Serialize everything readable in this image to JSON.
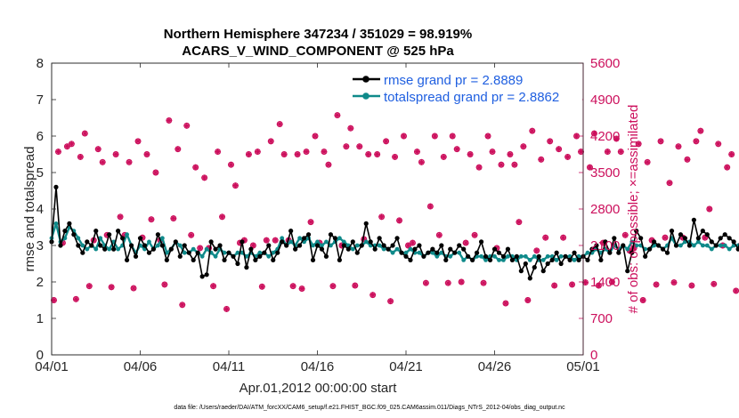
{
  "chart_data": {
    "type": "line",
    "title_line1": "Northern Hemisphere 347234 / 351029 = 98.919%",
    "title_line2": "ACARS_V_WIND_COMPONENT @ 525 hPa",
    "xlabel": "Apr.01,2012 00:00:00 start",
    "ylabel": "rmse and totalspread",
    "ylabel_right": "# of obs: o=possible; ×=assimilated",
    "footnote": "data file: /Users/raeder/DAI/ATM_forcXX/CAM6_setup/f.e21.FHIST_BGC.f09_025.CAM6assim.011/Diags_NTrS_2012-04/obs_diag_output.nc",
    "xlim": [
      0,
      30
    ],
    "ylim": [
      0,
      8
    ],
    "ylim_right": [
      0,
      5600
    ],
    "x_tick_values": [
      0,
      5,
      10,
      15,
      20,
      25,
      30
    ],
    "x_tick_labels": [
      "04/01",
      "04/06",
      "04/11",
      "04/16",
      "04/21",
      "04/26",
      "05/01"
    ],
    "y_ticks": [
      "0",
      "1",
      "2",
      "3",
      "4",
      "5",
      "6",
      "7",
      "8"
    ],
    "y_ticks_right": [
      "0",
      "700",
      "1400",
      "2100",
      "2800",
      "3500",
      "4200",
      "4900",
      "5600"
    ],
    "colors": {
      "rmse": "#000000",
      "spread": "#0f8a8a",
      "obs": "#cc0f5c",
      "legend_text": "#1f5fe0",
      "axis": "#262626"
    },
    "series": [
      {
        "name": "rmse grand pr = 2.8889",
        "marker": "dot",
        "x_step": 0.25,
        "values": [
          3.1,
          4.6,
          3.0,
          3.4,
          3.6,
          3.3,
          3.0,
          2.8,
          3.1,
          3.0,
          3.4,
          3.0,
          2.9,
          3.3,
          2.9,
          3.4,
          3.2,
          2.6,
          3.0,
          2.7,
          3.2,
          3.0,
          2.8,
          2.9,
          3.3,
          3.0,
          2.6,
          2.9,
          3.1,
          2.7,
          3.0,
          2.8,
          2.6,
          2.8,
          2.15,
          2.2,
          3.1,
          2.9,
          3.0,
          2.6,
          2.8,
          2.7,
          2.5,
          3.1,
          2.4,
          2.9,
          2.6,
          2.7,
          2.8,
          3.0,
          2.6,
          2.8,
          3.1,
          3.0,
          3.4,
          2.9,
          3.0,
          3.2,
          3.3,
          2.6,
          3.0,
          2.9,
          2.7,
          3.3,
          3.2,
          2.6,
          3.0,
          2.9,
          3.1,
          2.8,
          3.0,
          3.6,
          3.1,
          2.9,
          3.2,
          3.0,
          2.9,
          3.0,
          3.2,
          2.8,
          2.7,
          2.6,
          2.9,
          3.0,
          2.7,
          2.8,
          2.9,
          2.8,
          3.0,
          2.6,
          2.9,
          2.8,
          3.0,
          2.9,
          2.7,
          2.6,
          2.8,
          3.1,
          2.7,
          2.6,
          2.9,
          2.8,
          2.7,
          2.9,
          2.6,
          2.7,
          2.3,
          2.5,
          2.1,
          2.4,
          2.7,
          2.3,
          2.5,
          2.6,
          2.8,
          2.5,
          2.7,
          2.6,
          2.8,
          2.6,
          2.7,
          2.6,
          2.9,
          3.0,
          2.6,
          3.1,
          2.8,
          3.2,
          2.8,
          3.0,
          2.3,
          2.8,
          3.4,
          3.2,
          2.7,
          2.9,
          3.1,
          3.0,
          2.9,
          2.8,
          3.4,
          3.0,
          3.3,
          3.2,
          3.0,
          3.7,
          3.2,
          3.4,
          3.3,
          3.1,
          3.0,
          3.2,
          3.3,
          3.2,
          3.1,
          2.9,
          3.4,
          2.8,
          3.3,
          2.6,
          3.1,
          2.9,
          3.0,
          2.8,
          3.2,
          3.0,
          2.9,
          3.1,
          2.8,
          3.3,
          2.9,
          2.8,
          3.1,
          2.8,
          3.3,
          3.1,
          2.8
        ]
      },
      {
        "name": "totalspread grand pr = 2.8862",
        "marker": "dot",
        "x_step": 0.25,
        "values": [
          3.2,
          3.6,
          3.1,
          3.2,
          3.5,
          3.4,
          3.2,
          3.0,
          2.9,
          3.0,
          2.9,
          3.2,
          3.0,
          2.9,
          3.1,
          2.9,
          3.0,
          3.3,
          3.0,
          2.8,
          3.0,
          2.9,
          3.1,
          2.9,
          3.0,
          3.2,
          2.8,
          2.9,
          3.1,
          3.0,
          2.8,
          2.8,
          2.9,
          2.8,
          2.7,
          2.9,
          2.8,
          2.7,
          2.9,
          2.8,
          2.8,
          2.7,
          2.8,
          2.8,
          2.7,
          2.8,
          2.7,
          2.8,
          2.8,
          2.7,
          2.8,
          2.9,
          3.2,
          3.0,
          3.1,
          3.0,
          3.2,
          3.1,
          3.2,
          3.0,
          3.1,
          3.0,
          3.1,
          3.0,
          3.1,
          3.2,
          3.1,
          3.0,
          2.9,
          3.0,
          3.0,
          3.1,
          3.0,
          3.0,
          3.0,
          2.9,
          2.9,
          2.8,
          2.9,
          2.8,
          2.8,
          2.9,
          2.8,
          2.8,
          2.7,
          2.8,
          2.8,
          2.7,
          2.8,
          2.7,
          2.7,
          2.8,
          2.8,
          2.6,
          2.7,
          2.6,
          2.7,
          2.7,
          2.6,
          2.7,
          2.7,
          2.6,
          2.6,
          2.7,
          2.7,
          2.6,
          2.7,
          2.7,
          2.6,
          2.7,
          2.6,
          2.6,
          2.7,
          2.7,
          2.6,
          2.7,
          2.7,
          2.7,
          2.6,
          2.7,
          2.7,
          2.8,
          2.8,
          2.9,
          2.8,
          2.9,
          2.8,
          3.0,
          2.9,
          3.0,
          2.9,
          3.1,
          3.0,
          3.0,
          2.9,
          2.9,
          3.0,
          3.0,
          2.9,
          3.0,
          3.2,
          3.0,
          3.0,
          3.1,
          3.1,
          3.0,
          3.1,
          3.0,
          3.0,
          2.9,
          3.0,
          3.0,
          3.0,
          2.9,
          3.0,
          3.0,
          2.9,
          2.8,
          2.9,
          2.8,
          2.8,
          2.9,
          3.0,
          2.9,
          2.8,
          3.5,
          3.0,
          2.9,
          2.8,
          3.0,
          2.9,
          3.0,
          2.8,
          3.0,
          2.8
        ]
      }
    ],
    "obs_series": {
      "name": "# of obs",
      "x_step": 0.25,
      "x_start": 0.125,
      "assimilated": [
        1050,
        3900,
        2150,
        4000,
        4050,
        1070,
        3800,
        4250,
        1320,
        2200,
        3950,
        3700,
        2300,
        1300,
        3850,
        2650,
        2300,
        3700,
        1280,
        4100,
        2250,
        3850,
        2600,
        3500,
        2200,
        1350,
        4500,
        2620,
        3950,
        960,
        4400,
        2300,
        3600,
        2050,
        3400,
        2050,
        1320,
        3900,
        2650,
        880,
        3650,
        3250,
        2150,
        2200,
        3850,
        2100,
        3900,
        1310,
        2200,
        4100,
        2200,
        4430,
        3850,
        2200,
        1320,
        3850,
        1270,
        3900,
        2550,
        4200,
        2150,
        3900,
        3650,
        1320,
        4600,
        2100,
        4000,
        4350,
        1330,
        4000,
        2220,
        3850,
        1150,
        3850,
        2650,
        4100,
        1030,
        3800,
        2580,
        4200,
        2100,
        2150,
        3900,
        3700,
        1380,
        2850,
        4200,
        2300,
        3800,
        1380,
        4200,
        3950,
        1400,
        2150,
        3850,
        2300,
        3600,
        1380,
        4200,
        3900,
        2050,
        3650,
        990,
        3850,
        3650,
        2550,
        4000,
        1050,
        4300,
        2000,
        3750,
        2250,
        4100,
        1330,
        3950,
        2250,
        3800,
        1350,
        4200,
        3900,
        1390,
        3600,
        4250,
        1330,
        2150,
        3900,
        1400,
        4150,
        3900,
        2300,
        2000,
        2050,
        4050,
        1050,
        3700,
        2200,
        1350,
        4100,
        2250,
        3300,
        1390,
        4000,
        2250,
        3750,
        1330,
        4100,
        4300,
        2250,
        2800,
        1360,
        4050,
        2100,
        3600,
        3850,
        1230,
        2100,
        4100,
        3750,
        2250,
        1330,
        2150,
        4150,
        3700,
        4000,
        850,
        2100,
        2200,
        1410,
        4350,
        2100,
        3800,
        1350,
        4300,
        3850
      ]
    }
  }
}
